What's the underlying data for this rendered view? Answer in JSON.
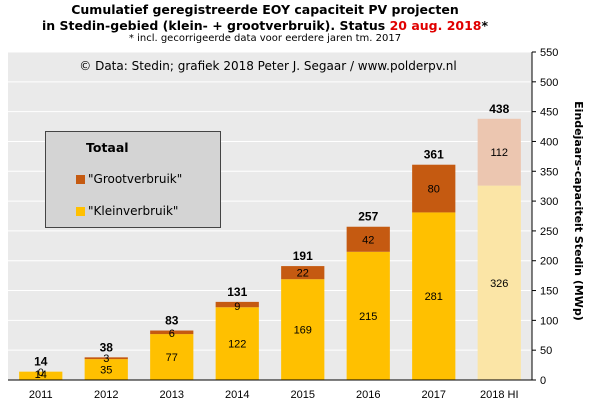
{
  "header": {
    "title_line1": "Cumulatief geregistreerde EOY capaciteit PV projecten",
    "title_line2_prefix": "in Stedin-gebied (klein- + grootverbruik).  Status ",
    "title_line2_date": "20 aug. 2018",
    "title_line2_suffix": "*",
    "subtitle": "* incl. gecorrigeerde data voor eerdere jaren tm. 2017"
  },
  "annotation": "© Data: Stedin; grafiek 2018 Peter J. Segaar / www.polderpv.nl",
  "legend": {
    "title": "Totaal",
    "items": [
      {
        "label": "\"Grootverbruik\"",
        "color": "#c55a11"
      },
      {
        "label": "\"Kleinverbruik\"",
        "color": "#ffc000"
      }
    ]
  },
  "chart_data": {
    "type": "bar",
    "stacked": true,
    "categories": [
      "2011",
      "2012",
      "2013",
      "2014",
      "2015",
      "2016",
      "2017",
      "2018 HI"
    ],
    "series": [
      {
        "name": "\"Kleinverbruik\"",
        "values": [
          14,
          35,
          77,
          122,
          169,
          215,
          281,
          326
        ],
        "color": "#ffc000",
        "last_color": "#fbe5a6"
      },
      {
        "name": "\"Grootverbruik\"",
        "values": [
          0,
          3,
          6,
          9,
          22,
          42,
          80,
          112
        ],
        "color": "#c55a11",
        "last_color": "#ecc6b0"
      }
    ],
    "totals": [
      14,
      38,
      83,
      131,
      191,
      257,
      361,
      438
    ],
    "ylabel": "Eindejaars-capaciteit Stedin (MWp)",
    "yaxis_position": "right",
    "ylim": [
      0,
      550
    ],
    "yticks": [
      0,
      50,
      100,
      150,
      200,
      250,
      300,
      350,
      400,
      450,
      500,
      550
    ],
    "grid": true,
    "legend_position": "top-left",
    "plot_background": "#eaeaea"
  }
}
